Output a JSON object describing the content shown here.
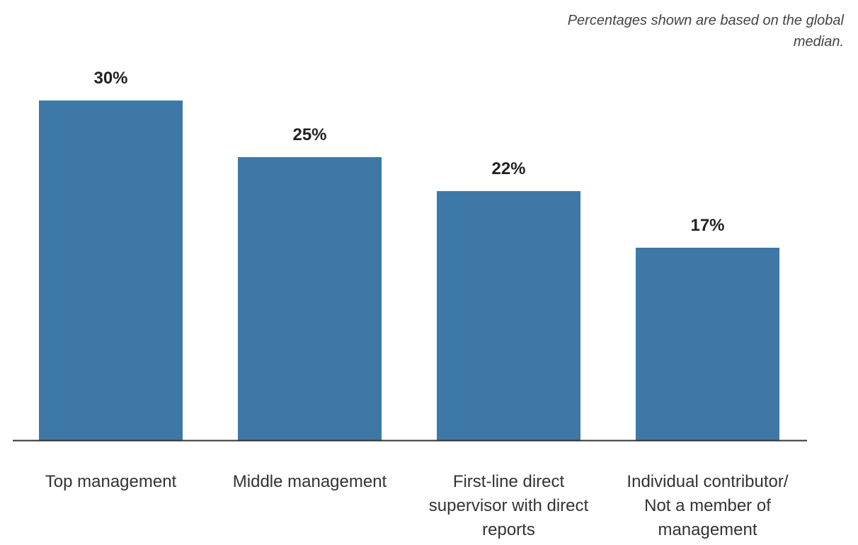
{
  "note": "Percentages shown are based on the global median.",
  "colors": {
    "bar": "#3e78a6",
    "axis": "#333333"
  },
  "chart_data": {
    "type": "bar",
    "title": "",
    "xlabel": "",
    "ylabel": "",
    "ylim": [
      0,
      30
    ],
    "grid": false,
    "legend": "none",
    "categories": [
      "Top management",
      "Middle management",
      "First-line direct supervisor with direct reports",
      "Individual contributor/ Not a member of management"
    ],
    "values": [
      30,
      25,
      22,
      17
    ],
    "value_labels": [
      "30%",
      "25%",
      "22%",
      "17%"
    ]
  }
}
